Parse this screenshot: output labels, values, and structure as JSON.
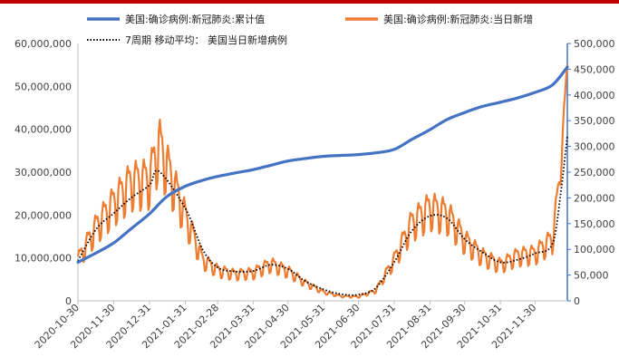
{
  "colors": {
    "cumulative": "#4472c4",
    "daily": "#ed7d31",
    "average": "#000000",
    "axis_left": "#bfbfbf",
    "axis_right": "#4472c4",
    "top_rule": "#c00000"
  },
  "chart_data": {
    "type": "line",
    "x_range": [
      "2020-10-30",
      "2021-12-28"
    ],
    "x_tick_labels": [
      "2020-10-30",
      "2020-11-30",
      "2020-12-31",
      "2021-01-31",
      "2021-02-28",
      "2021-03-31",
      "2021-04-30",
      "2021-05-31",
      "2021-06-30",
      "2021-07-31",
      "2021-08-31",
      "2021-09-30",
      "2021-10-31",
      "2021-11-30"
    ],
    "y_left": {
      "ylim": [
        0,
        60000000
      ],
      "tick_labels": [
        "0",
        "10,000,000",
        "20,000,000",
        "30,000,000",
        "40,000,000",
        "50,000,000",
        "60,000,000"
      ]
    },
    "y_right": {
      "ylim": [
        0,
        500000
      ],
      "tick_labels": [
        "0",
        "50,000",
        "100,000",
        "150,000",
        "200,000",
        "250,000",
        "300,000",
        "350,000",
        "400,000",
        "450,000",
        "500,000"
      ]
    },
    "legend": [
      "美国:确诊病例:新冠肺炎:累计值",
      "美国:确诊病例:新冠肺炎:当日新增",
      "7周期 移动平均： 美国当日新增病例"
    ],
    "legend_placement": "top",
    "series": [
      {
        "name": "美国:确诊病例:新冠肺炎:累计值",
        "axis": "left",
        "style": "line",
        "x": [
          "2020-10-30",
          "2020-11-15",
          "2020-11-30",
          "2020-12-15",
          "2020-12-31",
          "2021-01-15",
          "2021-01-31",
          "2021-02-15",
          "2021-02-28",
          "2021-03-15",
          "2021-03-31",
          "2021-04-15",
          "2021-04-30",
          "2021-05-15",
          "2021-05-31",
          "2021-06-15",
          "2021-06-30",
          "2021-07-15",
          "2021-07-31",
          "2021-08-15",
          "2021-08-31",
          "2021-09-15",
          "2021-09-30",
          "2021-10-15",
          "2021-10-31",
          "2021-11-15",
          "2021-11-30",
          "2021-12-15",
          "2021-12-28"
        ],
        "y": [
          9000000,
          11200000,
          13500000,
          16800000,
          20300000,
          24300000,
          26700000,
          28100000,
          29000000,
          29800000,
          30600000,
          31600000,
          32600000,
          33200000,
          33700000,
          33900000,
          34100000,
          34500000,
          35300000,
          37600000,
          39900000,
          42300000,
          43900000,
          45300000,
          46300000,
          47300000,
          48600000,
          50300000,
          54500000
        ]
      },
      {
        "name": "7周期 移动平均： 美国当日新增病例",
        "axis": "right",
        "style": "dotted",
        "x": [
          "2020-10-30",
          "2020-11-15",
          "2020-11-30",
          "2020-12-15",
          "2020-12-31",
          "2021-01-08",
          "2021-01-31",
          "2021-02-15",
          "2021-02-28",
          "2021-03-15",
          "2021-03-31",
          "2021-04-15",
          "2021-04-30",
          "2021-05-15",
          "2021-05-31",
          "2021-06-15",
          "2021-06-30",
          "2021-07-15",
          "2021-07-31",
          "2021-08-15",
          "2021-08-31",
          "2021-09-15",
          "2021-09-30",
          "2021-10-15",
          "2021-10-31",
          "2021-11-15",
          "2021-11-30",
          "2021-12-15",
          "2021-12-22",
          "2021-12-28"
        ],
        "y": [
          78000,
          140000,
          170000,
          200000,
          225000,
          252000,
          180000,
          100000,
          65000,
          57000,
          58000,
          70000,
          62000,
          38000,
          22000,
          13000,
          12000,
          25000,
          75000,
          135000,
          165000,
          160000,
          120000,
          95000,
          75000,
          80000,
          92000,
          110000,
          205000,
          320000
        ]
      },
      {
        "name": "美国:确诊病例:新冠肺炎:当日新增",
        "axis": "right",
        "style": "line",
        "x": [
          "2020-10-30",
          "2020-11-15",
          "2020-11-30",
          "2020-12-15",
          "2020-12-31",
          "2021-01-08",
          "2021-01-31",
          "2021-02-15",
          "2021-02-28",
          "2021-03-15",
          "2021-03-31",
          "2021-04-15",
          "2021-04-30",
          "2021-05-15",
          "2021-05-31",
          "2021-06-15",
          "2021-06-30",
          "2021-07-15",
          "2021-07-31",
          "2021-08-15",
          "2021-08-31",
          "2021-09-15",
          "2021-09-30",
          "2021-10-15",
          "2021-10-31",
          "2021-11-15",
          "2021-11-30",
          "2021-12-15",
          "2021-12-22",
          "2021-12-28"
        ],
        "y": [
          80000,
          145000,
          190000,
          230000,
          235000,
          305000,
          165000,
          80000,
          60000,
          52000,
          55000,
          72000,
          58000,
          35000,
          17000,
          9000,
          8000,
          20000,
          80000,
          150000,
          180000,
          168000,
          118000,
          88000,
          70000,
          88000,
          92000,
          120000,
          250000,
          460000
        ],
        "noise_amplitude": [
          0.25,
          0.25,
          0.25,
          0.25,
          0.25,
          0.25,
          0.25,
          0.25,
          0.25,
          0.25,
          0.25,
          0.25,
          0.25,
          0.25,
          0.25,
          0.25,
          0.25,
          0.25,
          0.25,
          0.25,
          0.25,
          0.25,
          0.25,
          0.25,
          0.25,
          0.25,
          0.25,
          0.25,
          0.1,
          0.05
        ]
      }
    ]
  }
}
